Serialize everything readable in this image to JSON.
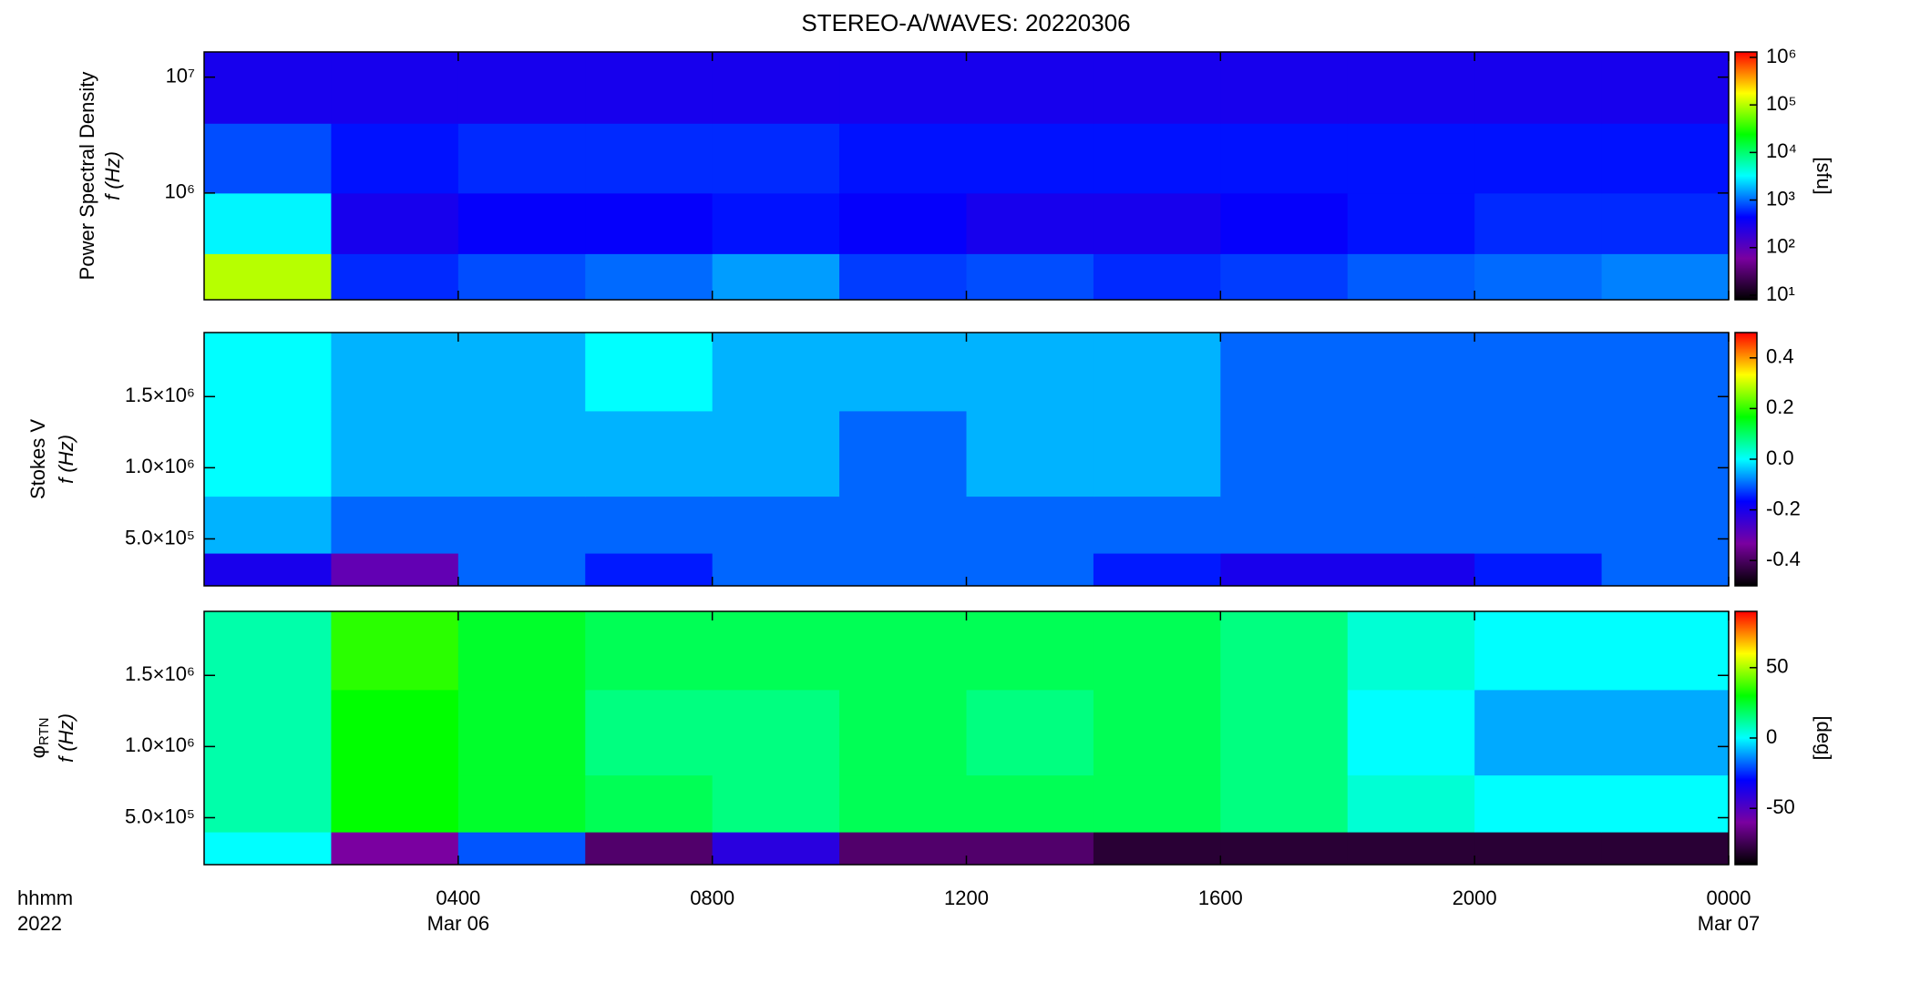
{
  "title": "STEREO-A/WAVES: 20220306",
  "colormap": [
    "#000000",
    "#7a00a0",
    "#0000ff",
    "#00ffff",
    "#00ff00",
    "#ffff00",
    "#ff0000"
  ],
  "x_axis": {
    "xlim": [
      0,
      24
    ],
    "xticks": [
      {
        "value": 4,
        "label": "0400"
      },
      {
        "value": 8,
        "label": "0800"
      },
      {
        "value": 12,
        "label": "1200"
      },
      {
        "value": 16,
        "label": "1600"
      },
      {
        "value": 20,
        "label": "2000"
      },
      {
        "value": 24,
        "label": "0000"
      }
    ],
    "date_labels": [
      {
        "value": 4,
        "label": "Mar 06"
      },
      {
        "value": 24,
        "label": "Mar 07"
      }
    ],
    "corner_labels": [
      "hhmm",
      "2022"
    ],
    "bins": [
      0,
      2,
      4,
      6,
      8,
      10,
      12,
      14,
      16,
      18,
      20,
      22,
      24
    ]
  },
  "chart_data": [
    {
      "type": "heatmap",
      "ylabel": "Power Spectral Density",
      "ylabel2": "f (Hz)",
      "ylog": true,
      "ylim": [
        120000,
        16500000
      ],
      "yticks": [
        {
          "value": 1000000,
          "label": "10⁶"
        },
        {
          "value": 10000000,
          "label": "10⁷"
        }
      ],
      "y_bins": [
        120000,
        300000,
        1000000,
        4000000,
        16500000
      ],
      "values": [
        [
          100000,
          600,
          800,
          1000,
          1500,
          700,
          800,
          600,
          700,
          900,
          1000,
          1200
        ],
        [
          3000,
          300,
          400,
          400,
          500,
          400,
          300,
          300,
          400,
          500,
          600,
          600
        ],
        [
          800,
          500,
          600,
          600,
          600,
          500,
          500,
          500,
          500,
          500,
          500,
          500
        ],
        [
          300,
          300,
          300,
          300,
          300,
          300,
          300,
          300,
          300,
          300,
          300,
          300
        ]
      ],
      "clog": true,
      "clim": [
        8,
        1300000
      ],
      "cticks": [
        {
          "value": 10,
          "label": "10¹"
        },
        {
          "value": 100,
          "label": "10²"
        },
        {
          "value": 1000,
          "label": "10³"
        },
        {
          "value": 10000,
          "label": "10⁴"
        },
        {
          "value": 100000,
          "label": "10⁵"
        },
        {
          "value": 1000000,
          "label": "10⁶"
        }
      ],
      "colorbar_label": "[sfu]"
    },
    {
      "type": "heatmap",
      "ylabel": "Stokes V",
      "ylabel2": "f (Hz)",
      "ylog": false,
      "ylim": [
        170000,
        1950000
      ],
      "yticks": [
        {
          "value": 500000,
          "label": "5.0×10⁵"
        },
        {
          "value": 1000000,
          "label": "1.0×10⁶"
        },
        {
          "value": 1500000,
          "label": "1.5×10⁶"
        }
      ],
      "y_bins": [
        170000,
        400000,
        800000,
        1400000,
        1950000
      ],
      "values": [
        [
          -0.2,
          -0.3,
          -0.1,
          -0.15,
          -0.1,
          -0.1,
          -0.1,
          -0.15,
          -0.2,
          -0.2,
          -0.15,
          -0.1
        ],
        [
          -0.05,
          -0.1,
          -0.1,
          -0.1,
          -0.1,
          -0.1,
          -0.1,
          -0.1,
          -0.1,
          -0.1,
          -0.1,
          -0.1
        ],
        [
          0,
          -0.05,
          -0.05,
          -0.05,
          -0.05,
          -0.1,
          -0.05,
          -0.05,
          -0.1,
          -0.1,
          -0.1,
          -0.1
        ],
        [
          0,
          -0.05,
          -0.05,
          0,
          -0.05,
          -0.05,
          -0.05,
          -0.05,
          -0.1,
          -0.1,
          -0.1,
          -0.1
        ]
      ],
      "clog": false,
      "clim": [
        -0.5,
        0.5
      ],
      "cticks": [
        -0.4,
        -0.2,
        {
          "value": 0,
          "label": "0.0"
        },
        0.2,
        0.4
      ]
    },
    {
      "type": "heatmap",
      "ylabel": "φ",
      "ylabel_sub": "RTN",
      "ylabel2": "f (Hz)",
      "ylog": false,
      "ylim": [
        170000,
        1950000
      ],
      "yticks": [
        {
          "value": 500000,
          "label": "5.0×10⁵"
        },
        {
          "value": 1000000,
          "label": "1.0×10⁶"
        },
        {
          "value": 1500000,
          "label": "1.5×10⁶"
        }
      ],
      "y_bins": [
        170000,
        400000,
        800000,
        1400000,
        1950000
      ],
      "values": [
        [
          0,
          -60,
          -20,
          -70,
          -40,
          -70,
          -70,
          -80,
          -80,
          -80,
          -80,
          -80
        ],
        [
          10,
          30,
          25,
          20,
          15,
          20,
          20,
          20,
          15,
          5,
          0,
          0
        ],
        [
          10,
          30,
          25,
          15,
          15,
          20,
          15,
          20,
          15,
          0,
          -10,
          -10
        ],
        [
          10,
          35,
          25,
          20,
          20,
          20,
          20,
          20,
          15,
          5,
          0,
          0
        ]
      ],
      "clog": false,
      "clim": [
        -90,
        90
      ],
      "cticks": [
        -50,
        0,
        50
      ],
      "colorbar_label": "[deg]"
    }
  ]
}
